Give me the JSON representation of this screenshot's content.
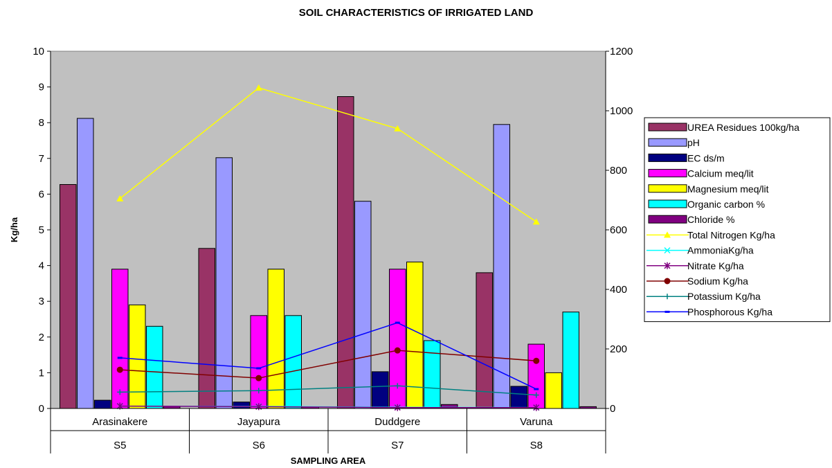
{
  "chart_data": {
    "type": "bar",
    "title": "SOIL CHARACTERISTICS  OF IRRIGATED LAND",
    "xlabel": "SAMPLING AREA",
    "ylabel": "Kg/ha",
    "ylim": [
      0,
      10
    ],
    "y_ticks": [
      "0",
      "1",
      "2",
      "3",
      "4",
      "5",
      "6",
      "7",
      "8",
      "9",
      "10"
    ],
    "y2lim": [
      0,
      1200
    ],
    "y2_ticks": [
      "0",
      "200",
      "400",
      "600",
      "800",
      "1000",
      "1200"
    ],
    "grid": false,
    "legend_position": "right",
    "plot_background": "#c0c0c0",
    "categories": [
      "Arasinakere",
      "Jayapura",
      "Duddgere",
      "Varuna"
    ],
    "subcategories": [
      "S5",
      "S6",
      "S7",
      "S8"
    ],
    "bar_series": [
      {
        "name": "UREA Residues 100kg/ha",
        "color": "#993366",
        "values": [
          6.27,
          4.48,
          8.73,
          3.8
        ]
      },
      {
        "name": "pH",
        "color": "#9999ff",
        "values": [
          8.12,
          7.02,
          5.8,
          7.95
        ]
      },
      {
        "name": "EC ds/m",
        "color": "#000080",
        "values": [
          0.23,
          0.18,
          1.03,
          0.62
        ]
      },
      {
        "name": "Calcium meq/lit",
        "color": "#ff00ff",
        "values": [
          3.9,
          2.6,
          3.9,
          1.8
        ]
      },
      {
        "name": "Magnesium meq/lit",
        "color": "#ffff00",
        "values": [
          2.9,
          3.9,
          4.1,
          1.0
        ]
      },
      {
        "name": "Organic carbon  %",
        "color": "#00ffff",
        "values": [
          2.3,
          2.6,
          1.9,
          2.7
        ]
      },
      {
        "name": "Chloride %",
        "color": "#800080",
        "values": [
          0.06,
          0.04,
          0.11,
          0.05
        ]
      }
    ],
    "line_series": [
      {
        "name": "Total Nitrogen  Kg/ha",
        "color": "#ffff00",
        "marker": "triangle",
        "values": [
          705,
          1077,
          940,
          627
        ]
      },
      {
        "name": "AmmoniaKg/ha",
        "color": "#00ffff",
        "marker": "x",
        "values": [
          8,
          7,
          4,
          3
        ]
      },
      {
        "name": "Nitrate    Kg/ha",
        "color": "#800080",
        "marker": "star",
        "values": [
          8,
          6,
          3,
          3
        ]
      },
      {
        "name": "Sodium Kg/ha",
        "color": "#800000",
        "marker": "circle",
        "values": [
          130,
          102,
          195,
          160
        ]
      },
      {
        "name": "Potassium Kg/ha",
        "color": "#008080",
        "marker": "plus",
        "values": [
          55,
          60,
          76,
          45
        ]
      },
      {
        "name": "Phosphorous Kg/ha",
        "color": "#0000ff",
        "marker": "dash",
        "values": [
          170,
          135,
          288,
          65
        ]
      }
    ]
  }
}
